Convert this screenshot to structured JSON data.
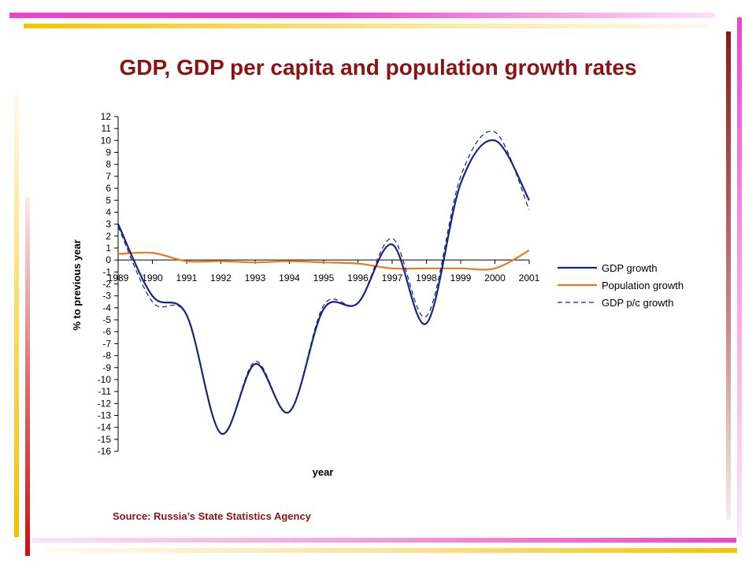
{
  "title": "GDP, GDP per capita and population growth rates",
  "source": "Source: Russia’s State Statistics Agency",
  "chart_data": {
    "type": "line",
    "title": "GDP, GDP per capita and population growth rates",
    "xlabel": "year",
    "ylabel": "% to previous year",
    "ylim": [
      -16,
      12
    ],
    "yticks": [
      12,
      11,
      10,
      9,
      8,
      7,
      6,
      5,
      4,
      3,
      2,
      1,
      0,
      -1,
      -2,
      -3,
      -4,
      -5,
      -6,
      -7,
      -8,
      -9,
      -10,
      -11,
      -12,
      -13,
      -14,
      -15,
      -16
    ],
    "categories": [
      "1989",
      "1990",
      "1991",
      "1992",
      "1993",
      "1994",
      "1995",
      "1996",
      "1997",
      "1998",
      "1999",
      "2000",
      "2001"
    ],
    "legend_position": "right",
    "grid": false,
    "series": [
      {
        "name": "GDP growth",
        "color": "#1a237e",
        "style": "solid",
        "points": [
          [
            1989,
            3.0
          ],
          [
            1990,
            -3.0
          ],
          [
            1991,
            -4.6
          ],
          [
            1992,
            -14.5
          ],
          [
            1993,
            -8.7
          ],
          [
            1994,
            -12.7
          ],
          [
            1995,
            -4.1
          ],
          [
            1996,
            -3.6
          ],
          [
            1997,
            1.3
          ],
          [
            1998,
            -5.3
          ],
          [
            1999,
            6.4
          ],
          [
            2000,
            10.0
          ],
          [
            2001,
            5.0
          ]
        ]
      },
      {
        "name": "Population growth",
        "color": "#ee7722",
        "style": "solid",
        "points": [
          [
            1989,
            0.5
          ],
          [
            1990,
            0.6
          ],
          [
            1991,
            -0.1
          ],
          [
            1992,
            -0.1
          ],
          [
            1993,
            -0.2
          ],
          [
            1994,
            -0.1
          ],
          [
            1995,
            -0.2
          ],
          [
            1996,
            -0.3
          ],
          [
            1997,
            -0.7
          ],
          [
            1998,
            -0.7
          ],
          [
            1999,
            -0.7
          ],
          [
            2000,
            -0.7
          ],
          [
            2001,
            0.8
          ]
        ]
      },
      {
        "name": "GDP p/c growth",
        "color": "#1a237e",
        "style": "dashed",
        "points": [
          [
            1989,
            2.8
          ],
          [
            1990,
            -3.5
          ],
          [
            1991,
            -4.6
          ],
          [
            1992,
            -14.5
          ],
          [
            1993,
            -8.5
          ],
          [
            1994,
            -12.7
          ],
          [
            1995,
            -3.8
          ],
          [
            1996,
            -3.6
          ],
          [
            1997,
            1.8
          ],
          [
            1998,
            -4.7
          ],
          [
            1999,
            7.0
          ],
          [
            2000,
            10.7
          ],
          [
            2001,
            4.2
          ]
        ]
      }
    ]
  }
}
